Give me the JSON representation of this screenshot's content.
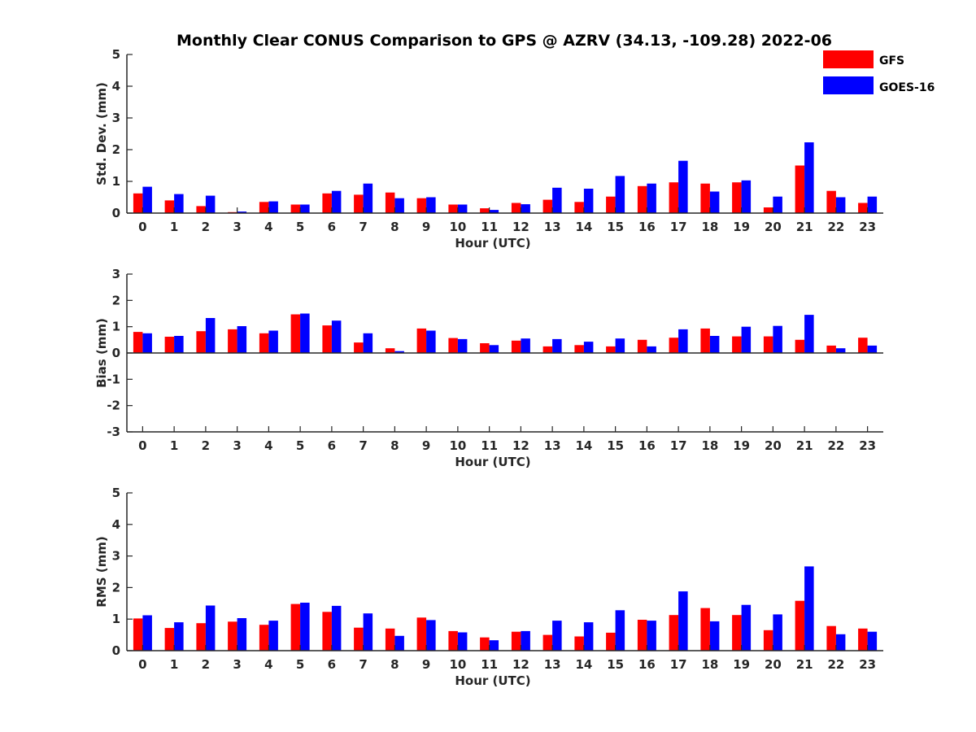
{
  "chart_data": {
    "type": "bar",
    "title": "Monthly Clear CONUS Comparison to GPS @ AZRV (34.13, -109.28) 2022-06",
    "legend": {
      "placement": "top-right",
      "entries": [
        {
          "name": "GFS",
          "color": "#ff0000"
        },
        {
          "name": "GOES-16",
          "color": "#0000ff"
        }
      ]
    },
    "categories": [
      "0",
      "1",
      "2",
      "3",
      "4",
      "5",
      "6",
      "7",
      "8",
      "9",
      "10",
      "11",
      "12",
      "13",
      "14",
      "15",
      "16",
      "17",
      "18",
      "19",
      "20",
      "21",
      "22",
      "23"
    ],
    "panels": [
      {
        "id": "stddev",
        "ylabel": "Std. Dev. (mm)",
        "xlabel": "Hour (UTC)",
        "ylim": [
          0,
          5
        ],
        "yticks": [
          "0",
          "1",
          "2",
          "3",
          "4",
          "5"
        ],
        "series": [
          {
            "name": "GFS",
            "values": [
              0.62,
              0.4,
              0.22,
              0.03,
              0.35,
              0.27,
              0.62,
              0.58,
              0.65,
              0.47,
              0.27,
              0.15,
              0.32,
              0.42,
              0.35,
              0.52,
              0.85,
              0.97,
              0.93,
              0.97,
              0.18,
              1.5,
              0.7,
              0.32
            ]
          },
          {
            "name": "GOES-16",
            "values": [
              0.83,
              0.6,
              0.55,
              0.05,
              0.37,
              0.27,
              0.7,
              0.93,
              0.47,
              0.5,
              0.27,
              0.1,
              0.28,
              0.8,
              0.77,
              1.17,
              0.93,
              1.65,
              0.68,
              1.03,
              0.52,
              2.23,
              0.5,
              0.52
            ]
          }
        ]
      },
      {
        "id": "bias",
        "ylabel": "Bias (mm)",
        "xlabel": "Hour (UTC)",
        "ylim": [
          -3,
          3
        ],
        "yticks": [
          "-3",
          "-2",
          "-1",
          "0",
          "1",
          "2",
          "3"
        ],
        "series": [
          {
            "name": "GFS",
            "values": [
              0.8,
              0.62,
              0.83,
              0.9,
              0.75,
              1.47,
              1.05,
              0.4,
              0.18,
              0.93,
              0.57,
              0.37,
              0.47,
              0.25,
              0.3,
              0.25,
              0.5,
              0.58,
              0.93,
              0.63,
              0.63,
              0.5,
              0.28,
              0.58
            ]
          },
          {
            "name": "GOES-16",
            "values": [
              0.75,
              0.65,
              1.33,
              1.02,
              0.85,
              1.5,
              1.23,
              0.75,
              0.07,
              0.85,
              0.53,
              0.3,
              0.55,
              0.53,
              0.43,
              0.55,
              0.25,
              0.9,
              0.65,
              1.0,
              1.03,
              1.45,
              0.18,
              0.28
            ]
          }
        ]
      },
      {
        "id": "rms",
        "ylabel": "RMS (mm)",
        "xlabel": "Hour (UTC)",
        "ylim": [
          0,
          5
        ],
        "yticks": [
          "0",
          "1",
          "2",
          "3",
          "4",
          "5"
        ],
        "series": [
          {
            "name": "GFS",
            "values": [
              1.02,
              0.72,
              0.87,
              0.92,
              0.82,
              1.48,
              1.23,
              0.73,
              0.7,
              1.05,
              0.62,
              0.42,
              0.6,
              0.5,
              0.45,
              0.57,
              0.98,
              1.13,
              1.35,
              1.13,
              0.65,
              1.58,
              0.78,
              0.7
            ]
          },
          {
            "name": "GOES-16",
            "values": [
              1.12,
              0.9,
              1.43,
              1.03,
              0.95,
              1.52,
              1.42,
              1.18,
              0.47,
              0.97,
              0.58,
              0.33,
              0.62,
              0.95,
              0.9,
              1.28,
              0.95,
              1.88,
              0.93,
              1.45,
              1.15,
              2.67,
              0.52,
              0.6
            ]
          }
        ]
      }
    ]
  }
}
